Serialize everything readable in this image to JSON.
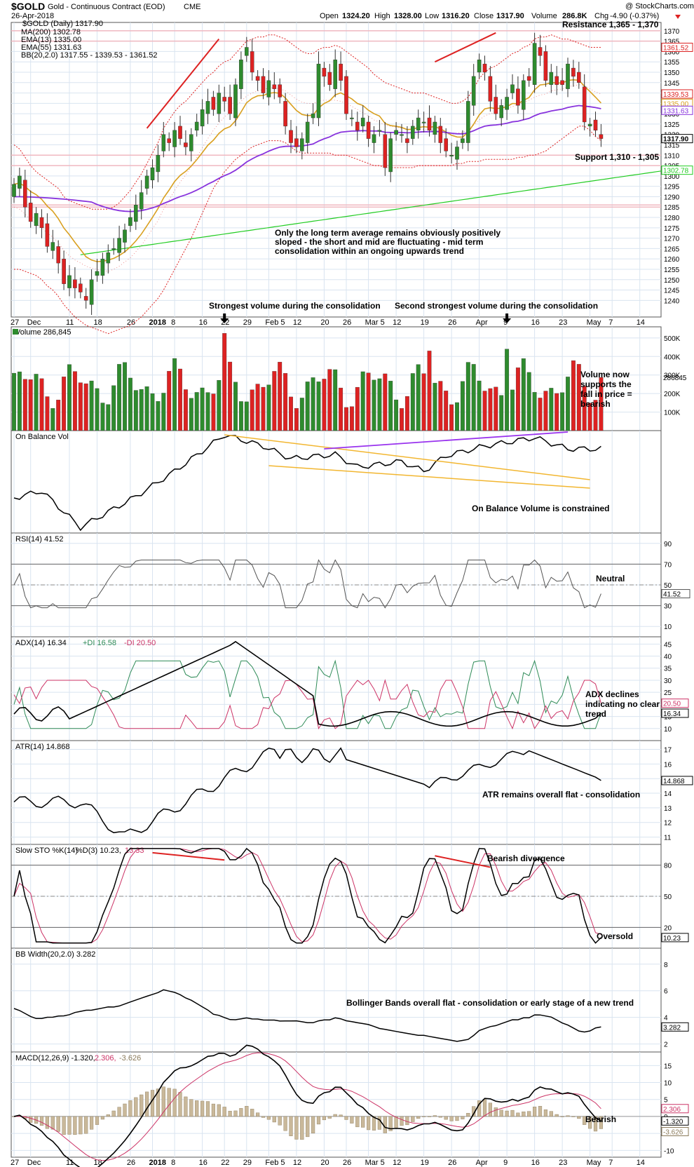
{
  "header": {
    "symbol": "$GOLD",
    "name": "Gold - Continuous Contract (EOD)",
    "exchange": "CME",
    "date": "26-Apr-2018",
    "watermark": "@ StockCharts.com",
    "open_label": "Open",
    "open": "1324.20",
    "high_label": "High",
    "high": "1328.00",
    "low_label": "Low",
    "low": "1316.20",
    "close_label": "Close",
    "close": "1317.90",
    "volume_label": "Volume",
    "volume": "286.8K",
    "chg_label": "Chg",
    "chg": "-4.90 (-0.37%)"
  },
  "legend": [
    {
      "text": "$GOLD (Daily) 1317.90",
      "color": "#000000"
    },
    {
      "text": "MA(200) 1302.78",
      "color": "#22cc22"
    },
    {
      "text": "EMA(13) 1335.00",
      "color": "#d9a020"
    },
    {
      "text": "EMA(55) 1331.63",
      "color": "#8833dd"
    },
    {
      "text": "BB(20,2.0) 1317.55 - 1339.53 - 1361.52",
      "color": "#dd2222"
    }
  ],
  "colors": {
    "up": "#2e8b2e",
    "down": "#dd2222",
    "ma200": "#22cc22",
    "ema13": "#d9a020",
    "ema55": "#8833dd",
    "bb": "#dd2222",
    "grid": "#d9e4f0",
    "panel_bg": "#ffffff",
    "plot_bg": "#ffffff",
    "accent_blue": "#7aa9d9",
    "dip": "#2e8b57",
    "dim": "#cc3366",
    "trend_orange": "#f2b630",
    "trend_purple": "#9933ee"
  },
  "x_axis": {
    "labels": [
      "27",
      "Dec",
      "11",
      "18",
      "26",
      "2018",
      "8",
      "16",
      "22",
      "29",
      "Feb 5",
      "12",
      "20",
      "26",
      "Mar 5",
      "12",
      "19",
      "26",
      "Apr",
      "9",
      "16",
      "23",
      "May",
      "7",
      "14"
    ]
  },
  "annotations": {
    "resistance": "Resistance 1,365 - 1,370",
    "support": "Support 1,310 - 1,305",
    "averages": [
      "Only the long term average remains obviously positively",
      "sloped - the short and mid are fluctuating - mid term",
      "consolidation within an ongoing upwards trend"
    ],
    "vol_strongest": "Strongest volume during the consolidation",
    "vol_second": "Second strongest volume during the consolidation",
    "volume_note": [
      "Volume now",
      "supports the",
      "fall in price =",
      "bearish"
    ],
    "obv_note": "On Balance Volume is constrained",
    "rsi_note": "Neutral",
    "adx_note": [
      "ADX declines",
      "indicating no clear",
      "trend"
    ],
    "atr_note": "ATR remains overall flat - consolidation",
    "sto_div": "Bearish divergence",
    "sto_note": "Oversold",
    "bbw_note": "Bollinger Bands overall flat - consolidation or early stage of a new trend",
    "macd_note": "Bearish"
  },
  "chart_data": {
    "type": "candlestick",
    "price": {
      "ylim": [
        1232,
        1374
      ],
      "ticks": [
        1240,
        1245,
        1250,
        1255,
        1260,
        1265,
        1270,
        1275,
        1280,
        1285,
        1290,
        1295,
        1300,
        1305,
        1310,
        1315,
        1320,
        1325,
        1330,
        1335,
        1340,
        1345,
        1350,
        1355,
        1360,
        1365,
        1370
      ],
      "tick_labels": [
        "1240",
        "1245",
        "1250",
        "1255",
        "1260",
        "1265",
        "1270",
        "1275",
        "1280",
        "1285",
        "1290",
        "1295",
        "1300",
        "1305",
        "1310",
        "1315",
        "1320",
        "1325",
        "1330",
        "1335",
        "1340",
        "1345",
        "1350",
        "1355",
        "1360",
        "1365",
        "1370"
      ],
      "closes": [
        1296,
        1300,
        1285,
        1278,
        1282,
        1275,
        1266,
        1268,
        1258,
        1248,
        1252,
        1246,
        1244,
        1240,
        1250,
        1254,
        1260,
        1263,
        1265,
        1270,
        1274,
        1280,
        1286,
        1292,
        1300,
        1304,
        1310,
        1320,
        1316,
        1322,
        1318,
        1314,
        1320,
        1326,
        1332,
        1336,
        1332,
        1340,
        1336,
        1330,
        1344,
        1356,
        1362,
        1350,
        1346,
        1340,
        1346,
        1342,
        1338,
        1324,
        1316,
        1314,
        1318,
        1326,
        1330,
        1354,
        1348,
        1344,
        1356,
        1346,
        1330,
        1328,
        1322,
        1328,
        1318,
        1320,
        1322,
        1304,
        1318,
        1322,
        1320,
        1316,
        1324,
        1328,
        1326,
        1322,
        1326,
        1316,
        1312,
        1310,
        1314,
        1318,
        1336,
        1348,
        1356,
        1350,
        1336,
        1330,
        1334,
        1338,
        1344,
        1334,
        1346,
        1346,
        1364,
        1358,
        1346,
        1350,
        1344,
        1344,
        1354,
        1348,
        1345,
        1326,
        1325,
        1322,
        1318
      ],
      "bb_upper": [
        1315,
        1313,
        1309,
        1305,
        1302,
        1300,
        1298,
        1296,
        1294,
        1290,
        1288,
        1287,
        1286,
        1285,
        1284,
        1284,
        1284,
        1284,
        1285,
        1287,
        1290,
        1293,
        1297,
        1301,
        1306,
        1311,
        1316,
        1323,
        1327,
        1331,
        1334,
        1336,
        1339,
        1342,
        1345,
        1348,
        1350,
        1353,
        1355,
        1356,
        1359,
        1362,
        1365,
        1366,
        1367,
        1367,
        1368,
        1368,
        1367,
        1366,
        1364,
        1362,
        1360,
        1359,
        1359,
        1361,
        1362,
        1362,
        1363,
        1362,
        1360,
        1358,
        1356,
        1354,
        1352,
        1349,
        1347,
        1345,
        1344,
        1343,
        1342,
        1341,
        1340,
        1340,
        1340,
        1339,
        1338,
        1337,
        1336,
        1335,
        1335,
        1336,
        1338,
        1342,
        1347,
        1350,
        1352,
        1353,
        1355,
        1357,
        1359,
        1360,
        1362,
        1363,
        1366,
        1367,
        1367,
        1368,
        1367,
        1366,
        1366,
        1365,
        1364,
        1363,
        1362,
        1362,
        1362
      ],
      "bb_lower": [
        1255,
        1255,
        1254,
        1253,
        1252,
        1250,
        1247,
        1245,
        1242,
        1238,
        1235,
        1232,
        1230,
        1228,
        1227,
        1226,
        1225,
        1224,
        1225,
        1226,
        1227,
        1228,
        1230,
        1232,
        1235,
        1238,
        1241,
        1245,
        1250,
        1255,
        1260,
        1265,
        1270,
        1276,
        1282,
        1288,
        1294,
        1298,
        1302,
        1305,
        1308,
        1310,
        1312,
        1314,
        1315,
        1316,
        1317,
        1317,
        1317,
        1316,
        1314,
        1312,
        1311,
        1311,
        1311,
        1311,
        1311,
        1311,
        1310,
        1310,
        1310,
        1309,
        1308,
        1307,
        1306,
        1305,
        1305,
        1304,
        1304,
        1304,
        1304,
        1304,
        1304,
        1305,
        1305,
        1305,
        1305,
        1305,
        1305,
        1305,
        1306,
        1306,
        1307,
        1307,
        1307,
        1308,
        1308,
        1308,
        1308,
        1308,
        1308,
        1309,
        1309,
        1310,
        1310,
        1311,
        1312,
        1314,
        1316,
        1318,
        1320,
        1322,
        1324,
        1324,
        1322,
        1319,
        1317
      ]
    },
    "volume": {
      "ylim": [
        0,
        560000
      ],
      "ticks": [
        100000,
        200000,
        300000,
        400000,
        500000
      ],
      "tick_labels": [
        "100K",
        "200K",
        "300K",
        "400K",
        "500K"
      ],
      "last_label": "286845",
      "title": "Volume 286,845"
    },
    "obv": {
      "title": "On Balance Vol"
    },
    "rsi": {
      "title": "RSI(14) 41.52",
      "ylim": [
        0,
        100
      ],
      "ticks": [
        10,
        30,
        50,
        70,
        90
      ],
      "tick_labels": [
        "10",
        "30",
        "50",
        "70",
        "90"
      ],
      "last_label": "41.52"
    },
    "adx": {
      "title_adx": "ADX(14) 16.34",
      "title_dip": "+DI 16.58",
      "title_dim": "-DI 20.50",
      "ylim": [
        5,
        48
      ],
      "ticks": [
        10,
        15,
        20,
        25,
        30,
        35,
        40,
        45
      ],
      "tick_labels": [
        "10",
        "15",
        "20",
        "25",
        "30",
        "35",
        "40",
        "45"
      ],
      "last_label_dim": "20.50",
      "last_label_adx": "16.34"
    },
    "atr": {
      "title": "ATR(14) 14.868",
      "ylim": [
        10.5,
        17.6
      ],
      "ticks": [
        11,
        12,
        13,
        14,
        15,
        16,
        17
      ],
      "tick_labels": [
        "11",
        "12",
        "13",
        "14",
        "15",
        "16",
        "17"
      ],
      "last_label": "14.868"
    },
    "sto": {
      "title_k": "Slow STO %K(14)",
      "title_d": "%D(3) 10.23,",
      "title_d2": "13.33",
      "ylim": [
        0,
        100
      ],
      "ticks": [
        20,
        50,
        80
      ],
      "tick_labels": [
        "20",
        "50",
        "80"
      ],
      "last_label": "10.23"
    },
    "bbw": {
      "title": "BB Width(20,2.0) 3.282",
      "ylim": [
        1.4,
        9.2
      ],
      "ticks": [
        2,
        4,
        6,
        8
      ],
      "tick_labels": [
        "2",
        "4",
        "6",
        "8"
      ],
      "last_label": "3.282"
    },
    "macd": {
      "title": "MACD(12,26,9) -1.320,",
      "title_sig": "2.306,",
      "title_hist": "-3.626",
      "ylim": [
        -12,
        19
      ],
      "ticks": [
        -10,
        -5,
        0,
        5,
        10,
        15
      ],
      "tick_labels": [
        "-10",
        "-5",
        "0",
        "5",
        "10",
        "15"
      ],
      "last_label_1": "2.306",
      "last_label_2": "-1.320",
      "last_label_3": "-3.626"
    }
  }
}
